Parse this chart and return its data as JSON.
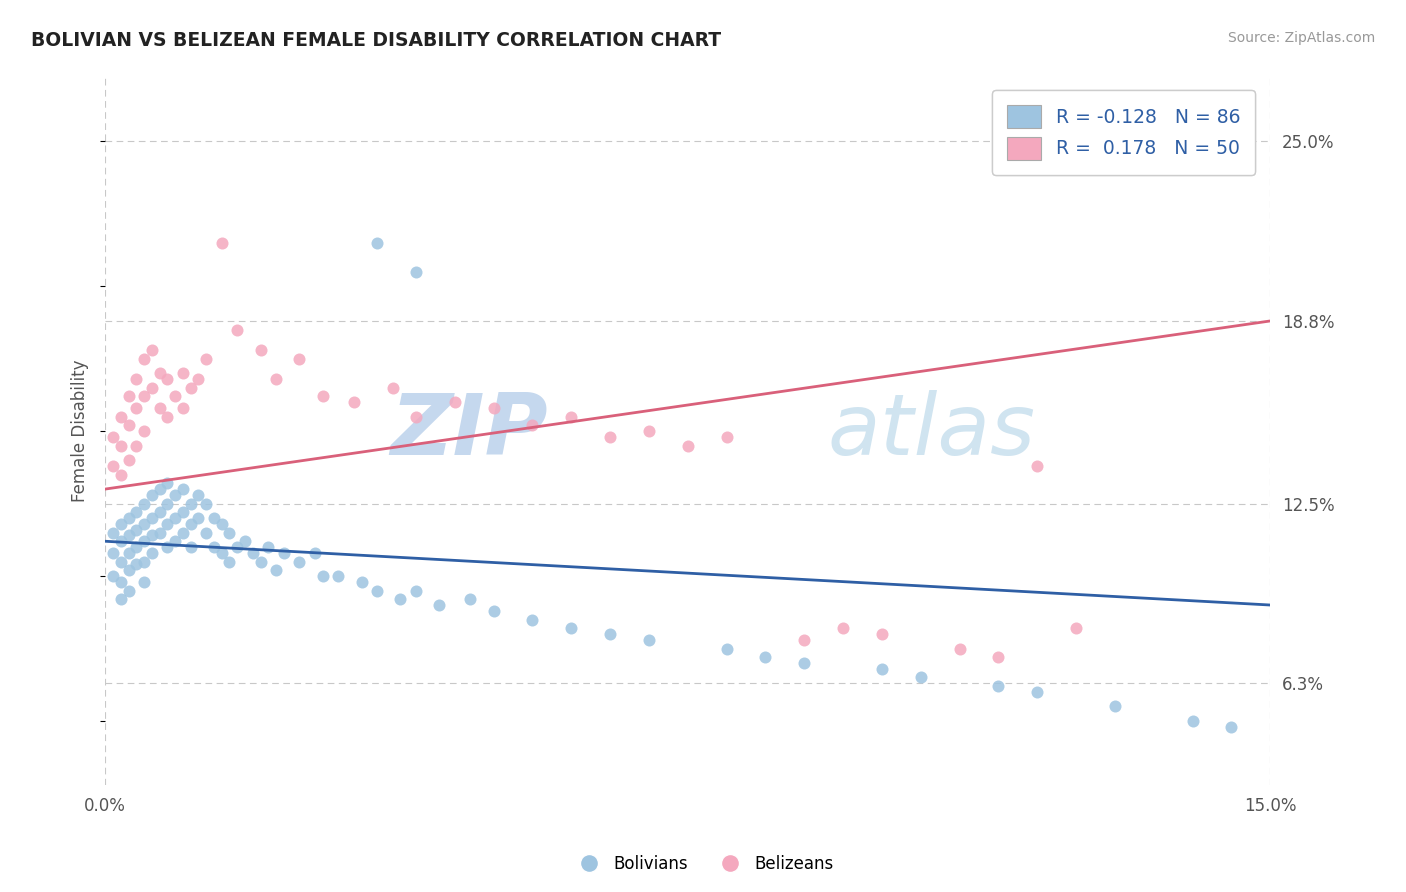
{
  "title": "BOLIVIAN VS BELIZEAN FEMALE DISABILITY CORRELATION CHART",
  "source": "Source: ZipAtlas.com",
  "ylabel_label": "Female Disability",
  "xlim": [
    0.0,
    0.15
  ],
  "ylim": [
    0.028,
    0.272
  ],
  "xtick_positions": [
    0.0,
    0.15
  ],
  "xtick_labels": [
    "0.0%",
    "15.0%"
  ],
  "ytick_values": [
    0.063,
    0.125,
    0.188,
    0.25
  ],
  "ytick_labels": [
    "6.3%",
    "12.5%",
    "18.8%",
    "25.0%"
  ],
  "blue_color": "#9ec4e0",
  "pink_color": "#f4a8be",
  "blue_line_color": "#2f5fa5",
  "pink_line_color": "#d9607a",
  "grid_color": "#c8c8c8",
  "watermark_color": "#ddeeff",
  "legend_text_color": "#2f5fa5",
  "R1": "-0.128",
  "N1": "86",
  "R2": "0.178",
  "N2": "50",
  "blue_x": [
    0.001,
    0.001,
    0.001,
    0.002,
    0.002,
    0.002,
    0.002,
    0.002,
    0.003,
    0.003,
    0.003,
    0.003,
    0.003,
    0.004,
    0.004,
    0.004,
    0.004,
    0.005,
    0.005,
    0.005,
    0.005,
    0.005,
    0.006,
    0.006,
    0.006,
    0.006,
    0.007,
    0.007,
    0.007,
    0.008,
    0.008,
    0.008,
    0.008,
    0.009,
    0.009,
    0.009,
    0.01,
    0.01,
    0.01,
    0.011,
    0.011,
    0.011,
    0.012,
    0.012,
    0.013,
    0.013,
    0.014,
    0.014,
    0.015,
    0.015,
    0.016,
    0.016,
    0.017,
    0.018,
    0.019,
    0.02,
    0.021,
    0.022,
    0.023,
    0.025,
    0.027,
    0.028,
    0.03,
    0.033,
    0.035,
    0.038,
    0.04,
    0.043,
    0.047,
    0.05,
    0.055,
    0.06,
    0.065,
    0.07,
    0.08,
    0.085,
    0.09,
    0.1,
    0.105,
    0.115,
    0.12,
    0.13,
    0.14,
    0.145,
    0.035,
    0.04
  ],
  "blue_y": [
    0.115,
    0.108,
    0.1,
    0.118,
    0.112,
    0.105,
    0.098,
    0.092,
    0.12,
    0.114,
    0.108,
    0.102,
    0.095,
    0.122,
    0.116,
    0.11,
    0.104,
    0.125,
    0.118,
    0.112,
    0.105,
    0.098,
    0.128,
    0.12,
    0.114,
    0.108,
    0.13,
    0.122,
    0.115,
    0.132,
    0.125,
    0.118,
    0.11,
    0.128,
    0.12,
    0.112,
    0.13,
    0.122,
    0.115,
    0.125,
    0.118,
    0.11,
    0.128,
    0.12,
    0.125,
    0.115,
    0.12,
    0.11,
    0.118,
    0.108,
    0.115,
    0.105,
    0.11,
    0.112,
    0.108,
    0.105,
    0.11,
    0.102,
    0.108,
    0.105,
    0.108,
    0.1,
    0.1,
    0.098,
    0.095,
    0.092,
    0.095,
    0.09,
    0.092,
    0.088,
    0.085,
    0.082,
    0.08,
    0.078,
    0.075,
    0.072,
    0.07,
    0.068,
    0.065,
    0.062,
    0.06,
    0.055,
    0.05,
    0.048,
    0.215,
    0.205
  ],
  "pink_x": [
    0.001,
    0.001,
    0.002,
    0.002,
    0.002,
    0.003,
    0.003,
    0.003,
    0.004,
    0.004,
    0.004,
    0.005,
    0.005,
    0.005,
    0.006,
    0.006,
    0.007,
    0.007,
    0.008,
    0.008,
    0.009,
    0.01,
    0.01,
    0.011,
    0.012,
    0.013,
    0.015,
    0.017,
    0.02,
    0.022,
    0.025,
    0.028,
    0.032,
    0.037,
    0.04,
    0.045,
    0.05,
    0.055,
    0.06,
    0.065,
    0.07,
    0.075,
    0.08,
    0.09,
    0.095,
    0.1,
    0.11,
    0.115,
    0.12,
    0.125
  ],
  "pink_y": [
    0.148,
    0.138,
    0.155,
    0.145,
    0.135,
    0.162,
    0.152,
    0.14,
    0.168,
    0.158,
    0.145,
    0.175,
    0.162,
    0.15,
    0.178,
    0.165,
    0.17,
    0.158,
    0.168,
    0.155,
    0.162,
    0.17,
    0.158,
    0.165,
    0.168,
    0.175,
    0.215,
    0.185,
    0.178,
    0.168,
    0.175,
    0.162,
    0.16,
    0.165,
    0.155,
    0.16,
    0.158,
    0.152,
    0.155,
    0.148,
    0.15,
    0.145,
    0.148,
    0.078,
    0.082,
    0.08,
    0.075,
    0.072,
    0.138,
    0.082
  ]
}
